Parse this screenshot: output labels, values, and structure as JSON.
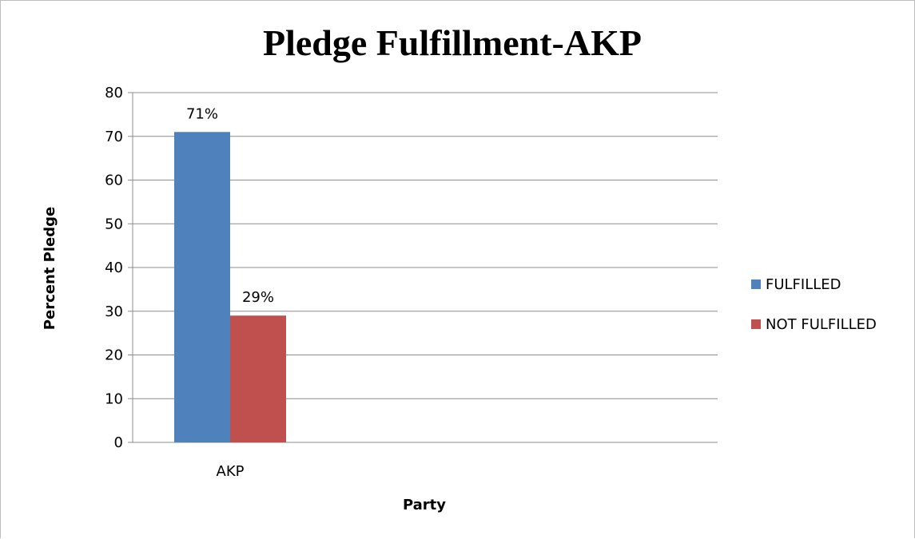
{
  "chart_data": {
    "type": "bar",
    "title": "Pledge Fulfillment-AKP",
    "xlabel": "Party",
    "ylabel": "Percent Pledge",
    "categories": [
      "AKP"
    ],
    "series": [
      {
        "name": "FULFILLED",
        "values": [
          71
        ],
        "labels": [
          "71%"
        ],
        "color": "#4f81bd"
      },
      {
        "name": "NOT FULFILLED",
        "values": [
          29
        ],
        "labels": [
          "29%"
        ],
        "color": "#c0504d"
      }
    ],
    "ylim": [
      0,
      80
    ],
    "yticks": [
      0,
      10,
      20,
      30,
      40,
      50,
      60,
      70,
      80
    ],
    "grid": true,
    "legend_position": "right"
  }
}
